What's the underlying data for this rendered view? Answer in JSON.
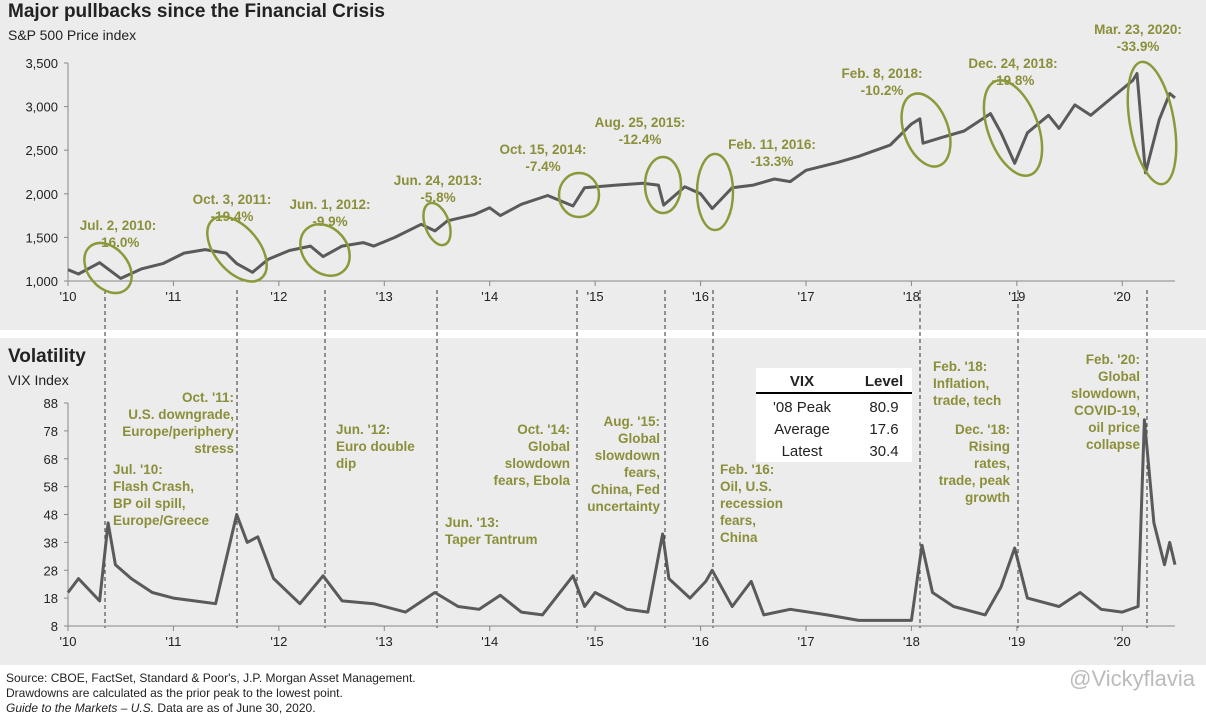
{
  "chart_data": [
    {
      "type": "line",
      "title": "Major pullbacks since the Financial Crisis",
      "subtitle": "S&P 500 Price index",
      "x": [
        2010.0,
        2010.1,
        2010.3,
        2010.5,
        2010.7,
        2010.9,
        2011.1,
        2011.3,
        2011.5,
        2011.6,
        2011.75,
        2011.9,
        2012.1,
        2012.3,
        2012.42,
        2012.6,
        2012.8,
        2012.9,
        2013.1,
        2013.35,
        2013.48,
        2013.6,
        2013.85,
        2014.0,
        2014.1,
        2014.3,
        2014.55,
        2014.79,
        2014.9,
        2015.2,
        2015.45,
        2015.6,
        2015.65,
        2015.85,
        2016.0,
        2016.11,
        2016.3,
        2016.5,
        2016.7,
        2016.85,
        2017.0,
        2017.3,
        2017.5,
        2017.8,
        2018.0,
        2018.08,
        2018.11,
        2018.3,
        2018.5,
        2018.75,
        2018.85,
        2018.98,
        2019.1,
        2019.3,
        2019.4,
        2019.55,
        2019.7,
        2019.9,
        2020.1,
        2020.14,
        2020.22,
        2020.35,
        2020.45,
        2020.5
      ],
      "series": [
        {
          "name": "S&P 500",
          "color": "#5a5a5a",
          "values": [
            1130,
            1080,
            1210,
            1030,
            1140,
            1200,
            1320,
            1360,
            1320,
            1200,
            1100,
            1250,
            1350,
            1400,
            1280,
            1400,
            1440,
            1400,
            1500,
            1650,
            1575,
            1690,
            1760,
            1840,
            1750,
            1880,
            1980,
            1860,
            2070,
            2100,
            2120,
            2100,
            1870,
            2080,
            2000,
            1830,
            2070,
            2100,
            2170,
            2140,
            2270,
            2360,
            2430,
            2560,
            2800,
            2860,
            2580,
            2650,
            2720,
            2920,
            2700,
            2350,
            2700,
            2900,
            2750,
            3020,
            2900,
            3100,
            3300,
            3380,
            2240,
            2850,
            3150,
            3100
          ]
        }
      ],
      "xlim": [
        2010,
        2020.5
      ],
      "xticks": [
        {
          "value": 2010,
          "label": "'10"
        },
        {
          "value": 2011,
          "label": "'11"
        },
        {
          "value": 2012,
          "label": "'12"
        },
        {
          "value": 2013,
          "label": "'13"
        },
        {
          "value": 2014,
          "label": "'14"
        },
        {
          "value": 2015,
          "label": "'15"
        },
        {
          "value": 2016,
          "label": "'16"
        },
        {
          "value": 2017,
          "label": "'17"
        },
        {
          "value": 2018,
          "label": "'18"
        },
        {
          "value": 2019,
          "label": "'19"
        },
        {
          "value": 2020,
          "label": "'20"
        }
      ],
      "ylim": [
        1000,
        3500
      ],
      "yticks": [
        {
          "value": 1000,
          "label": "1,000"
        },
        {
          "value": 1500,
          "label": "1,500"
        },
        {
          "value": 2000,
          "label": "2,000"
        },
        {
          "value": 2500,
          "label": "2,500"
        },
        {
          "value": 3000,
          "label": "3,000"
        },
        {
          "value": 3500,
          "label": "3,500"
        }
      ],
      "annotations": [
        {
          "lines": [
            "Jul. 2, 2010:",
            "-16.0%"
          ]
        },
        {
          "lines": [
            "Oct. 3, 2011:",
            "-19.4%"
          ]
        },
        {
          "lines": [
            "Jun. 1, 2012:",
            "-9.9%"
          ]
        },
        {
          "lines": [
            "Jun. 24, 2013:",
            "-5.8%"
          ]
        },
        {
          "lines": [
            "Oct. 15, 2014:",
            "-7.4%"
          ]
        },
        {
          "lines": [
            "Aug. 25, 2015:",
            "-12.4%"
          ]
        },
        {
          "lines": [
            "Feb. 11, 2016:",
            "-13.3%"
          ]
        },
        {
          "lines": [
            "Feb. 8, 2018:",
            "-10.2%"
          ]
        },
        {
          "lines": [
            "Dec. 24, 2018:",
            "-19.8%"
          ]
        },
        {
          "lines": [
            "Mar. 23, 2020:",
            "-33.9%"
          ]
        }
      ]
    },
    {
      "type": "line",
      "title": "Volatility",
      "subtitle": "VIX Index",
      "x": [
        2010.0,
        2010.1,
        2010.3,
        2010.38,
        2010.45,
        2010.6,
        2010.8,
        2011.0,
        2011.2,
        2011.4,
        2011.6,
        2011.7,
        2011.8,
        2011.95,
        2012.2,
        2012.42,
        2012.6,
        2012.9,
        2013.2,
        2013.48,
        2013.7,
        2013.9,
        2014.1,
        2014.3,
        2014.5,
        2014.79,
        2014.9,
        2015.0,
        2015.3,
        2015.5,
        2015.64,
        2015.7,
        2015.9,
        2016.05,
        2016.11,
        2016.3,
        2016.48,
        2016.6,
        2016.85,
        2017.2,
        2017.5,
        2017.8,
        2018.0,
        2018.1,
        2018.2,
        2018.4,
        2018.7,
        2018.85,
        2018.98,
        2019.1,
        2019.4,
        2019.6,
        2019.8,
        2020.0,
        2020.15,
        2020.21,
        2020.3,
        2020.4,
        2020.45,
        2020.5
      ],
      "series": [
        {
          "name": "VIX",
          "color": "#5a5a5a",
          "values": [
            20,
            25,
            17,
            45,
            30,
            25,
            20,
            18,
            17,
            16,
            48,
            38,
            40,
            25,
            16,
            26,
            17,
            16,
            13,
            20,
            15,
            14,
            19,
            13,
            12,
            26,
            15,
            20,
            14,
            13,
            41,
            25,
            18,
            24,
            28,
            15,
            24,
            12,
            14,
            12,
            10,
            10,
            10,
            37,
            20,
            15,
            12,
            22,
            36,
            18,
            15,
            20,
            14,
            13,
            15,
            82,
            45,
            30,
            38,
            30
          ]
        }
      ],
      "xlim": [
        2010,
        2020.5
      ],
      "xticks": [
        {
          "value": 2010,
          "label": "'10"
        },
        {
          "value": 2011,
          "label": "'11"
        },
        {
          "value": 2012,
          "label": "'12"
        },
        {
          "value": 2013,
          "label": "'13"
        },
        {
          "value": 2014,
          "label": "'14"
        },
        {
          "value": 2015,
          "label": "'15"
        },
        {
          "value": 2016,
          "label": "'16"
        },
        {
          "value": 2017,
          "label": "'17"
        },
        {
          "value": 2018,
          "label": "'18"
        },
        {
          "value": 2019,
          "label": "'19"
        },
        {
          "value": 2020,
          "label": "'20"
        }
      ],
      "ylim": [
        8,
        88
      ],
      "yticks": [
        8,
        18,
        28,
        38,
        48,
        58,
        68,
        78,
        88
      ],
      "annotations": [
        {
          "lines": [
            "Oct. '11:",
            "U.S. downgrade,",
            "Europe/periphery",
            "stress"
          ]
        },
        {
          "lines": [
            "Jul. '10:",
            "Flash Crash,",
            "BP oil spill,",
            "Europe/Greece"
          ]
        },
        {
          "lines": [
            "Jun. '12:",
            "Euro double",
            "dip"
          ]
        },
        {
          "lines": [
            "Jun. '13:",
            "Taper Tantrum"
          ]
        },
        {
          "lines": [
            "Oct. '14:",
            "Global",
            "slowdown",
            "fears, Ebola"
          ]
        },
        {
          "lines": [
            "Aug. '15:",
            "Global",
            "slowdown",
            "fears,",
            "China, Fed",
            "uncertainty"
          ]
        },
        {
          "lines": [
            "Feb. '16:",
            "Oil, U.S.",
            "recession",
            "fears,",
            "China"
          ]
        },
        {
          "lines": [
            "Feb. '18:",
            "Inflation,",
            "trade, tech"
          ]
        },
        {
          "lines": [
            "Dec. '18:",
            "Rising",
            "rates,",
            "trade, peak",
            "growth"
          ]
        },
        {
          "lines": [
            "Feb. '20:",
            "Global",
            "slowdown,",
            "COVID-19,",
            "oil price",
            "collapse"
          ]
        }
      ],
      "table": {
        "header": [
          "VIX",
          "Level"
        ],
        "rows": [
          [
            "'08 Peak",
            80.9
          ],
          [
            "Average",
            17.6
          ],
          [
            "Latest",
            30.4
          ]
        ]
      }
    }
  ],
  "footer": {
    "source": "Source: CBOE, FactSet, Standard & Poor's, J.P. Morgan Asset Management.",
    "note": "Drawdowns are calculated as the prior peak to the lowest point.",
    "guide_italic": "Guide to the Markets – U.S.",
    "guide_rest": " Data are as of June 30, 2020.",
    "watermark": "@Vickyflavia"
  }
}
